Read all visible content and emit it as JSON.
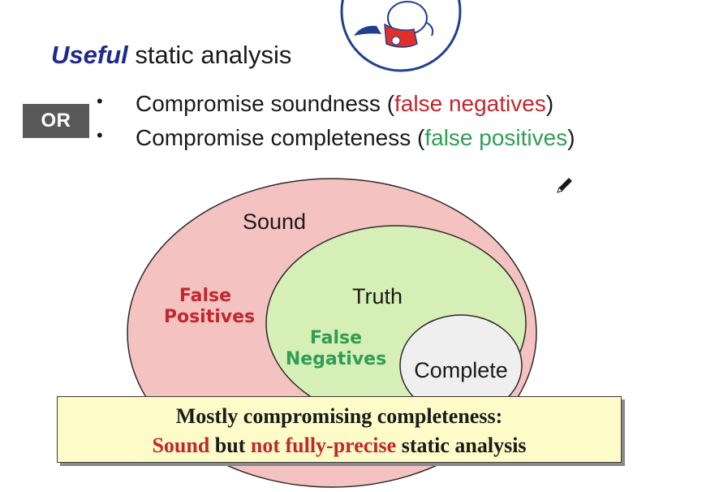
{
  "title": {
    "emphasis": "Useful",
    "rest": " static analysis"
  },
  "or_badge": "OR",
  "bullets": [
    {
      "marker": "•",
      "prefix": "Compromise soundness (",
      "highlight": "false negatives",
      "suffix": ")",
      "highlight_color": "#c0282e"
    },
    {
      "marker": "•",
      "prefix": "Compromise completeness (",
      "highlight": "false positives",
      "suffix": ")",
      "highlight_color": "#2f9e55"
    }
  ],
  "venn": {
    "sound_label": "Sound",
    "truth_label": "Truth",
    "complete_label": "Complete",
    "false_positives_line1": "False",
    "false_positives_line2": "Positives",
    "false_negatives_line1": "False",
    "false_negatives_line2": "Negatives",
    "colors": {
      "sound_fill": "#f4c2c0",
      "truth_fill": "#d6efb6",
      "complete_fill": "#efefef",
      "false_positives_text": "#c0282e",
      "false_negatives_text": "#2f9e55"
    }
  },
  "callout": {
    "line1": "Mostly compromising completeness:",
    "line2_red1": "Sound",
    "line2_mid": " but ",
    "line2_red2": "not fully-precise",
    "line2_end": " static analysis"
  },
  "icons": {
    "mascot": "superhero-mascot-icon",
    "pencil": "pencil-icon"
  }
}
